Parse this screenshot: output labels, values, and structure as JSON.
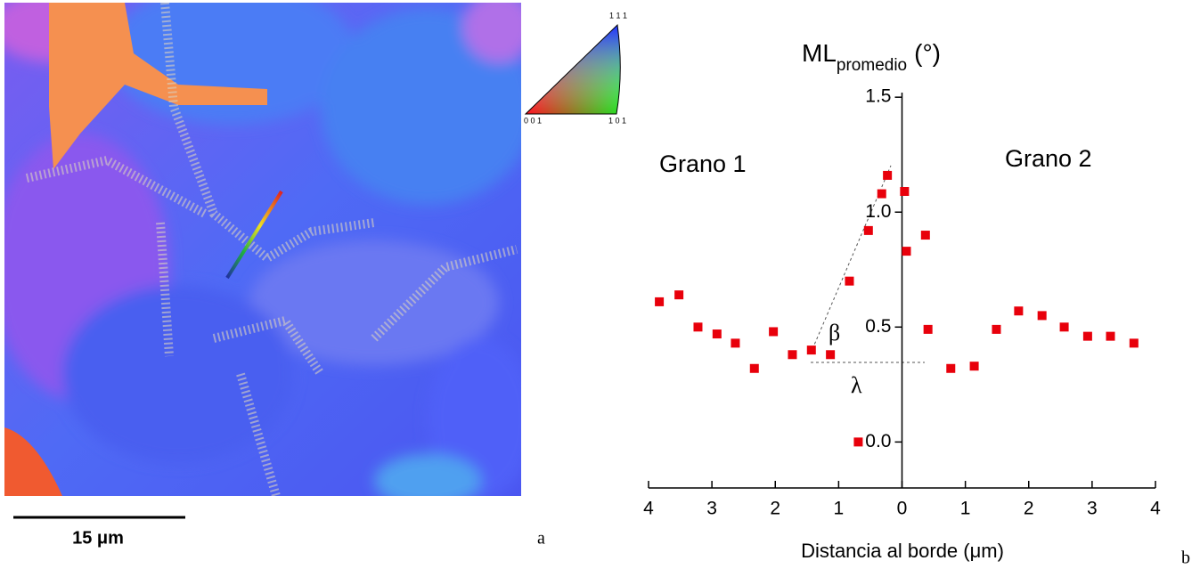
{
  "image_panel": {
    "scale_bar_label": "15 μm",
    "panel_label": "a",
    "key_labels": [
      "1 1 1",
      "0 0 1",
      "1 0 1"
    ]
  },
  "chart_data": {
    "type": "scatter",
    "panel_label": "b",
    "title": "ML",
    "title_subscript": "promedio",
    "title_unit": "(°)",
    "x_label": "Distancia al borde (μm)",
    "annotations": [
      "Grano 1",
      "Grano 2",
      "β",
      "λ"
    ],
    "xlim": [
      -4,
      4
    ],
    "ylim": [
      -0.2,
      1.52
    ],
    "xticks": [
      {
        "value": -4,
        "label": "4"
      },
      {
        "value": -3,
        "label": "3"
      },
      {
        "value": -2,
        "label": "2"
      },
      {
        "value": -1,
        "label": "1"
      },
      0,
      1,
      2,
      3,
      4
    ],
    "yticks": [
      {
        "value": 0,
        "label": "0.0"
      },
      0.5,
      {
        "value": 1,
        "label": "1.0"
      },
      1.5
    ],
    "series": [
      {
        "color": "#e8000b",
        "x": [
          -3.83,
          -3.52,
          -3.22,
          -2.92,
          -2.63,
          -2.33,
          -2.03,
          -1.73,
          -1.43,
          -1.13,
          -0.83,
          -0.69,
          -0.53,
          -0.32,
          -0.23,
          0.04,
          0.07,
          0.37,
          0.41,
          0.77,
          1.14,
          1.49,
          1.84,
          2.21,
          2.56,
          2.93,
          3.29,
          3.66
        ],
        "values": [
          0.61,
          0.64,
          0.5,
          0.47,
          0.43,
          0.32,
          0.48,
          0.38,
          0.4,
          0.38,
          0.7,
          0.0,
          0.92,
          1.08,
          1.16,
          1.09,
          0.83,
          0.9,
          0.49,
          0.32,
          0.33,
          0.49,
          0.57,
          0.55,
          0.5,
          0.46,
          0.46,
          0.43
        ]
      }
    ]
  }
}
